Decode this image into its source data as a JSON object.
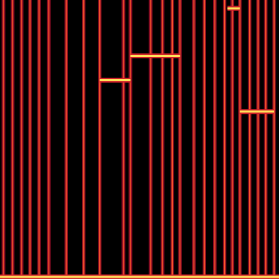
{
  "chart_data": {
    "type": "spectrogram",
    "tick_labels": false,
    "xlim": [
      0,
      400
    ],
    "ylim": [
      0,
      400
    ],
    "impulses": [
      5,
      18,
      31,
      43,
      56,
      70,
      95,
      120,
      143,
      177,
      187,
      216,
      233,
      247,
      258,
      278,
      293,
      308,
      322,
      333,
      344,
      358,
      370,
      381,
      393
    ],
    "tones": [
      {
        "x0": 143,
        "x1": 187,
        "y": 285
      },
      {
        "x0": 187,
        "x1": 258,
        "y": 320
      },
      {
        "x0": 326,
        "x1": 344,
        "y": 388
      },
      {
        "x0": 344,
        "x1": 393,
        "y": 240
      },
      {
        "x0": 0,
        "x1": 400,
        "y": 3
      }
    ]
  }
}
